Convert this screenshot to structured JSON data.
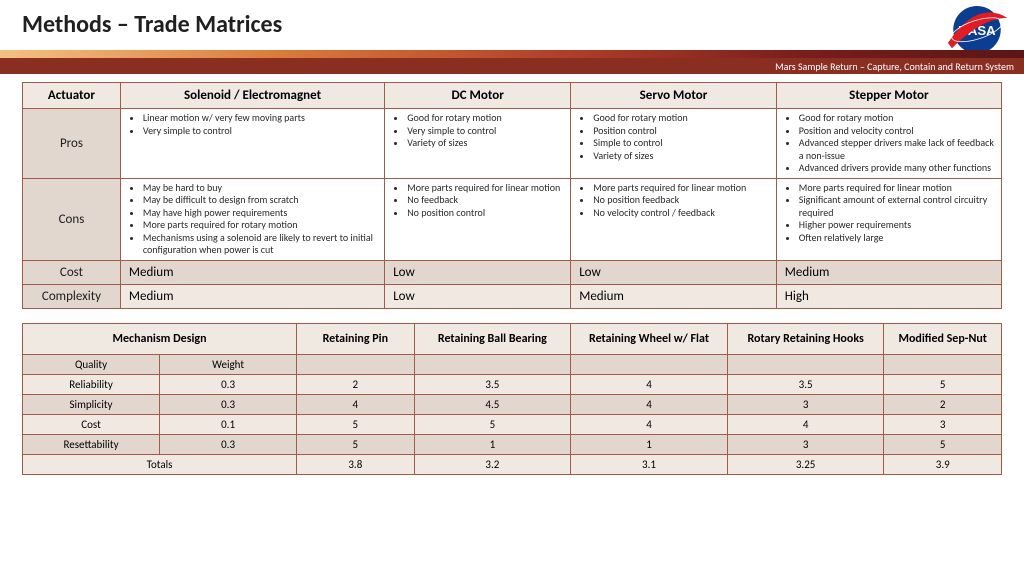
{
  "title": "Methods – Trade Matrices",
  "subtitle": "Mars Sample Return – Capture, Contain and Return System",
  "table1": {
    "columns": [
      "Actuator",
      "Solenoid / Electromagnet",
      "DC Motor",
      "Servo Motor",
      "Stepper Motor"
    ],
    "col_widths": [
      "10%",
      "27%",
      "19%",
      "21%",
      "23%"
    ],
    "rows": [
      {
        "label": "Pros",
        "cells": [
          [
            "Linear motion w/ very few moving parts",
            "Very simple to control"
          ],
          [
            "Good for rotary motion",
            "Very simple to control",
            "Variety of sizes"
          ],
          [
            "Good for rotary motion",
            "Position control",
            "Simple to control",
            "Variety of sizes"
          ],
          [
            "Good for rotary motion",
            "Position and velocity control",
            "Advanced stepper drivers make lack of feedback a non-issue",
            "Advanced drivers provide many other functions"
          ]
        ]
      },
      {
        "label": "Cons",
        "cells": [
          [
            "May be hard to buy",
            "May be difficult to design from scratch",
            "May have high power requirements",
            "More parts required for rotary motion",
            "Mechanisms using a solenoid are likely to revert to initial configuration when power is cut"
          ],
          [
            "More parts required for linear motion",
            "No feedback",
            "No position control"
          ],
          [
            "More parts required for linear motion",
            "No position feedback",
            "No velocity control / feedback"
          ],
          [
            "More parts required for linear motion",
            "Significant amount of external control circuitry required",
            "Higher power requirements",
            "Often relatively large"
          ]
        ]
      }
    ],
    "value_rows": [
      {
        "label": "Cost",
        "values": [
          "Medium",
          "Low",
          "Low",
          "Medium"
        ]
      },
      {
        "label": "Complexity",
        "values": [
          "Medium",
          "Low",
          "Medium",
          "High"
        ]
      }
    ]
  },
  "table2": {
    "head_span": "Mechanism Design",
    "design_cols": [
      "Retaining Pin",
      "Retaining Ball Bearing",
      "Retaining Wheel w/ Flat",
      "Rotary Retaining Hooks",
      "Modified Sep-Nut"
    ],
    "subheads": [
      "Quality",
      "Weight"
    ],
    "rows": [
      {
        "label": "Reliability",
        "weight": "0.3",
        "values": [
          "2",
          "3.5",
          "4",
          "3.5",
          "5"
        ]
      },
      {
        "label": "Simplicity",
        "weight": "0.3",
        "values": [
          "4",
          "4.5",
          "4",
          "3",
          "2"
        ]
      },
      {
        "label": "Cost",
        "weight": "0.1",
        "values": [
          "5",
          "5",
          "4",
          "4",
          "3"
        ]
      },
      {
        "label": "Resettability",
        "weight": "0.3",
        "values": [
          "5",
          "1",
          "1",
          "3",
          "5"
        ]
      }
    ],
    "totals_label": "Totals",
    "totals": [
      "3.8",
      "3.2",
      "3.1",
      "3.25",
      "3.9"
    ],
    "col_widths": [
      "14%",
      "14%",
      "12%",
      "16%",
      "16%",
      "16%",
      "12%"
    ]
  }
}
